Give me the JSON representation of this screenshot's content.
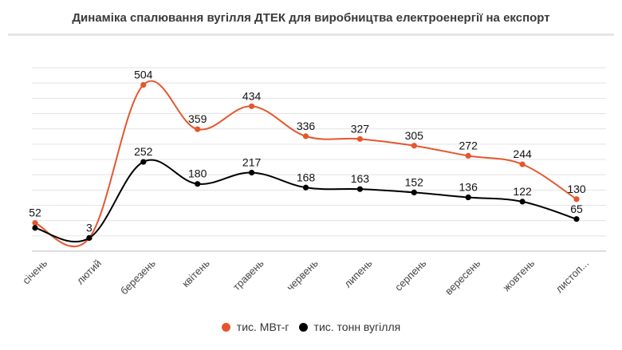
{
  "chart_data": {
    "type": "line",
    "title": "Динаміка спалювання вугілля ДТЕК для виробництва електроенергії на експорт",
    "categories": [
      "січень",
      "лютий",
      "березень",
      "квітень",
      "травень",
      "червень",
      "липень",
      "серпень",
      "вересень",
      "жовтень",
      "листоп..."
    ],
    "series": [
      {
        "name": "тис. МВт-г",
        "color": "#e4572e",
        "values": [
          52,
          3,
          504,
          359,
          434,
          336,
          327,
          305,
          272,
          244,
          130
        ]
      },
      {
        "name": "тис. тонн вугілля",
        "color": "#000000",
        "values": [
          36,
          3,
          252,
          180,
          217,
          168,
          163,
          152,
          136,
          122,
          65
        ]
      }
    ],
    "value_labels": [
      [
        "52",
        "3",
        "504",
        "359",
        "434",
        "336",
        "327",
        "305",
        "272",
        "244",
        "130"
      ],
      [
        "",
        "",
        "252",
        "180",
        "217",
        "168",
        "163",
        "152",
        "136",
        "122",
        "65"
      ]
    ],
    "ylim": [
      -40,
      560
    ],
    "grid": true,
    "legend_position": "bottom"
  }
}
